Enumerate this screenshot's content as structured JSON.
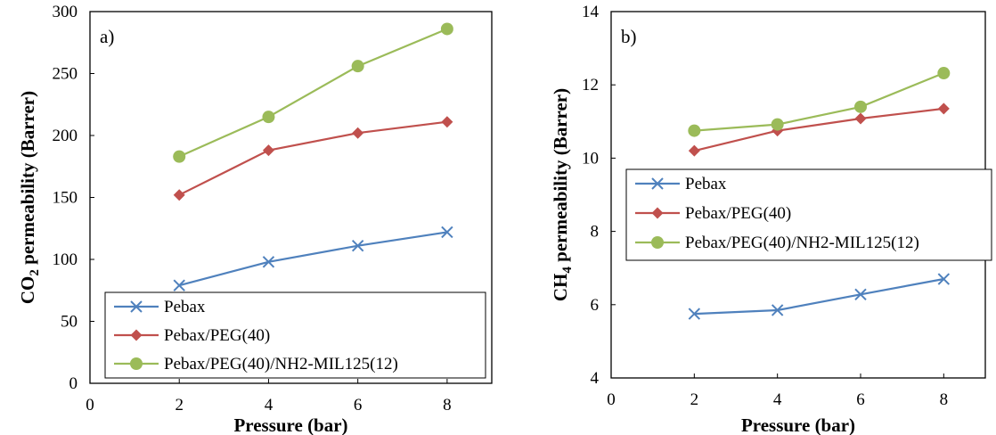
{
  "colors": {
    "pebax": "#4f81bd",
    "peg": "#c0504d",
    "mil": "#9bbb59"
  },
  "chart_data": [
    {
      "type": "line",
      "panel_label": "a)",
      "xlabel": "Pressure (bar)",
      "ylabel": "CO2 permeability (Barrer)",
      "ylabel_main": "CO",
      "ylabel_sub": "2",
      "ylabel_rest": " permeability (Barrer)",
      "xlim": [
        0,
        9
      ],
      "ylim": [
        0,
        300
      ],
      "xticks": [
        0,
        2,
        4,
        6,
        8
      ],
      "yticks": [
        0,
        50,
        100,
        150,
        200,
        250,
        300
      ],
      "grid": false,
      "legend_position": "bottom",
      "x": [
        2,
        4,
        6,
        8
      ],
      "series": [
        {
          "name": "Pebax",
          "marker": "x",
          "color": "#4f81bd",
          "values": [
            79,
            98,
            111,
            122
          ]
        },
        {
          "name": "Pebax/PEG(40)",
          "marker": "diamond",
          "color": "#c0504d",
          "values": [
            152,
            188,
            202,
            211
          ]
        },
        {
          "name": "Pebax/PEG(40)/NH2-MIL125(12)",
          "marker": "circle",
          "color": "#9bbb59",
          "values": [
            183,
            215,
            256,
            286
          ]
        }
      ]
    },
    {
      "type": "line",
      "panel_label": "b)",
      "xlabel": "Pressure (bar)",
      "ylabel": "CH4 permeability (Barrer)",
      "ylabel_main": "CH",
      "ylabel_sub": "4",
      "ylabel_rest": " permeability (Barrer)",
      "xlim": [
        0,
        9
      ],
      "ylim": [
        4,
        14
      ],
      "xticks": [
        0,
        2,
        4,
        6,
        8
      ],
      "yticks": [
        4,
        6,
        8,
        10,
        12,
        14
      ],
      "grid": false,
      "legend_position": "middle-left",
      "x": [
        2,
        4,
        6,
        8
      ],
      "series": [
        {
          "name": "Pebax",
          "marker": "x",
          "color": "#4f81bd",
          "values": [
            5.75,
            5.85,
            6.28,
            6.7
          ]
        },
        {
          "name": "Pebax/PEG(40)",
          "marker": "diamond",
          "color": "#c0504d",
          "values": [
            10.2,
            10.75,
            11.08,
            11.35
          ]
        },
        {
          "name": "Pebax/PEG(40)/NH2-MIL125(12)",
          "marker": "circle",
          "color": "#9bbb59",
          "values": [
            10.75,
            10.92,
            11.4,
            12.32
          ]
        }
      ]
    }
  ]
}
